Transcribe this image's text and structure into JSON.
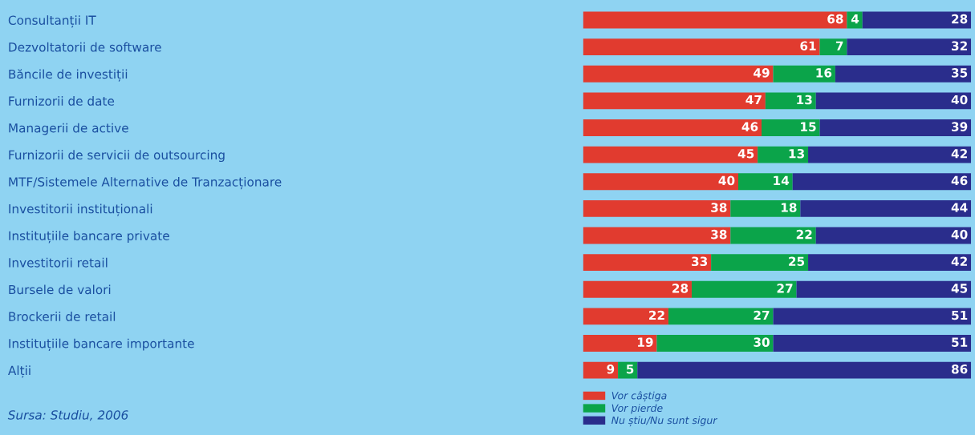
{
  "chart_data": {
    "type": "bar",
    "orientation": "horizontal",
    "stacked": true,
    "data_labels": true,
    "legend": "bottom",
    "grid": false,
    "categories": [
      "Consultanții IT",
      "Dezvoltatorii de software",
      "Băncile de investiții",
      "Furnizorii de date",
      "Managerii de active",
      "Furnizorii de servicii de outsourcing",
      "MTF/Sistemele Alternative de Tranzacționare",
      "Investitorii instituționali",
      "Instituțiile bancare private",
      "Investitorii retail",
      "Bursele de valori",
      "Brockerii de retail",
      "Instituțiile bancare importante",
      "Alții"
    ],
    "series": [
      {
        "name": "Vor câștiga",
        "color": "#e13b2f",
        "values": [
          68,
          61,
          49,
          47,
          46,
          45,
          40,
          38,
          38,
          33,
          28,
          22,
          19,
          9
        ]
      },
      {
        "name": "Vor pierde",
        "color": "#0ba44a",
        "values": [
          4,
          7,
          16,
          13,
          15,
          13,
          14,
          18,
          22,
          25,
          27,
          27,
          30,
          5
        ]
      },
      {
        "name": "Nu știu/Nu sunt sigur",
        "color": "#2a2d8c",
        "values": [
          28,
          32,
          35,
          40,
          39,
          42,
          46,
          44,
          40,
          42,
          45,
          51,
          51,
          86
        ]
      }
    ],
    "annotations": [
      "Sursa: Studiu, 2006"
    ]
  }
}
